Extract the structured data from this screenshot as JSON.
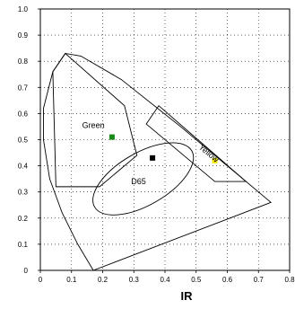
{
  "chart_data": {
    "type": "scatter",
    "title": "",
    "xlabel": "IR",
    "ylabel": "",
    "xlim": [
      0,
      0.8
    ],
    "ylim": [
      0,
      1.0
    ],
    "x_ticks": [
      "0",
      "0.1",
      "0.2",
      "0.3",
      "0.4",
      "0.5",
      "0.6",
      "0.7",
      "0.8"
    ],
    "y_ticks": [
      "0",
      "0.1",
      "0.2",
      "0.3",
      "0.4",
      "0.5",
      "0.6",
      "0.7",
      "0.8",
      "0.9",
      "1.0"
    ],
    "grid": true,
    "spectral_locus": [
      [
        0.17,
        0.0
      ],
      [
        0.12,
        0.1
      ],
      [
        0.07,
        0.22
      ],
      [
        0.03,
        0.35
      ],
      [
        0.01,
        0.5
      ],
      [
        0.01,
        0.62
      ],
      [
        0.04,
        0.76
      ],
      [
        0.08,
        0.83
      ],
      [
        0.13,
        0.82
      ],
      [
        0.26,
        0.73
      ],
      [
        0.45,
        0.55
      ],
      [
        0.6,
        0.4
      ],
      [
        0.74,
        0.26
      ],
      [
        0.17,
        0.0
      ]
    ],
    "regions": [
      {
        "label": "Green",
        "polygon": [
          [
            0.04,
            0.76
          ],
          [
            0.08,
            0.83
          ],
          [
            0.27,
            0.63
          ],
          [
            0.31,
            0.44
          ],
          [
            0.19,
            0.32
          ],
          [
            0.05,
            0.32
          ]
        ]
      },
      {
        "label": "Yellow",
        "polygon": [
          [
            0.38,
            0.63
          ],
          [
            0.66,
            0.34
          ],
          [
            0.56,
            0.34
          ],
          [
            0.34,
            0.56
          ]
        ]
      }
    ],
    "ellipse": {
      "label": "D65",
      "cx": 0.33,
      "cy": 0.35,
      "rx": 0.18,
      "ry": 0.1,
      "angle_deg": 30
    },
    "points": [
      {
        "name": "green-marker",
        "x": 0.23,
        "y": 0.51,
        "color": "#1a8a1a"
      },
      {
        "name": "d65-marker",
        "x": 0.36,
        "y": 0.43,
        "color": "#000000"
      },
      {
        "name": "yellow-marker",
        "x": 0.56,
        "y": 0.42,
        "color": "#f2e600"
      }
    ],
    "annotations": [
      {
        "text": "Green",
        "x": 0.17,
        "y": 0.545,
        "rotate": 0
      },
      {
        "text": "D65",
        "x": 0.315,
        "y": 0.33,
        "rotate": 0
      },
      {
        "text": "Yellow",
        "x": 0.535,
        "y": 0.44,
        "rotate": 40
      }
    ]
  }
}
